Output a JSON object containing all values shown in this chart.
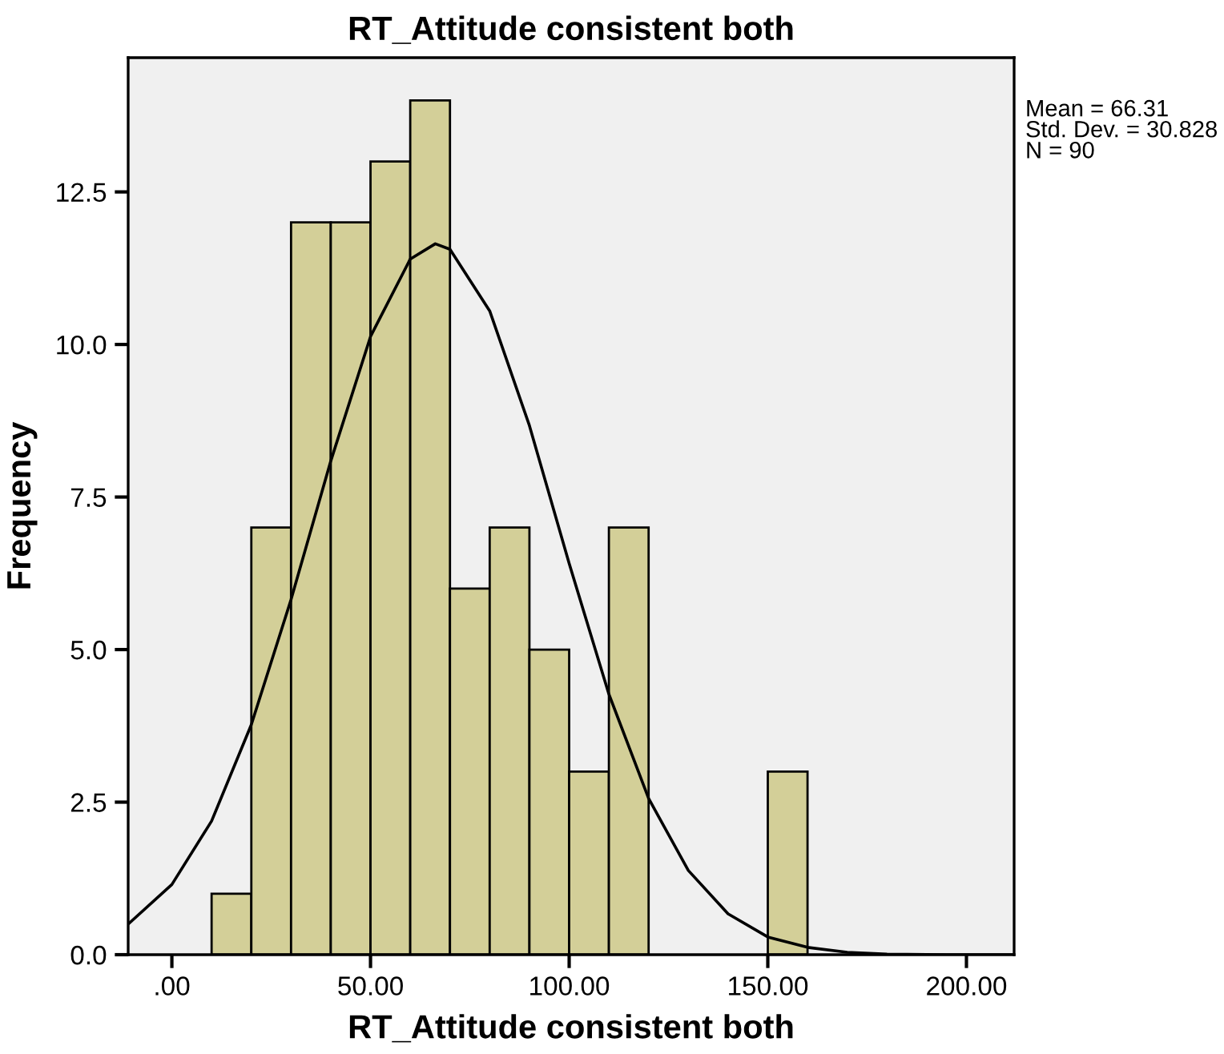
{
  "chart_data": {
    "type": "histogram",
    "title": "RT_Attitude consistent both",
    "xlabel": "RT_Attitude consistent both",
    "ylabel": "Frequency",
    "bins": [
      10,
      20,
      30,
      40,
      50,
      60,
      70,
      80,
      90,
      100,
      110,
      120,
      130,
      140,
      150,
      160
    ],
    "values": [
      1,
      7,
      12,
      12,
      13,
      14,
      6,
      7,
      5,
      3,
      7,
      0,
      0,
      0,
      3
    ],
    "color": "#d3cf98",
    "series": [
      {
        "type": "line",
        "color": "#000000",
        "x": [
          -11,
          0,
          10,
          20,
          30,
          40,
          50,
          60,
          66.31,
          70,
          80,
          90,
          100,
          110,
          120,
          130,
          140,
          150,
          160,
          170,
          180,
          195,
          212
        ],
        "values": [
          0.5,
          1.15,
          2.19,
          3.77,
          5.82,
          8.09,
          10.13,
          11.4,
          11.65,
          11.56,
          10.55,
          8.67,
          6.41,
          4.27,
          2.56,
          1.38,
          0.67,
          0.29,
          0.12,
          0.04,
          0.01,
          0.0,
          0.0
        ]
      }
    ],
    "xlim": [
      -11,
      212
    ],
    "ylim": [
      0,
      14.7
    ],
    "xticks": [
      {
        "value": 0,
        "label": ".00"
      },
      {
        "value": 50,
        "label": "50.00"
      },
      {
        "value": 100,
        "label": "100.00"
      },
      {
        "value": 150,
        "label": "150.00"
      },
      {
        "value": 200,
        "label": "200.00"
      }
    ],
    "yticks": [
      {
        "value": 0,
        "label": "0.0"
      },
      {
        "value": 2.5,
        "label": "2.5"
      },
      {
        "value": 5,
        "label": "5.0"
      },
      {
        "value": 7.5,
        "label": "7.5"
      },
      {
        "value": 10,
        "label": "10.0"
      },
      {
        "value": 12.5,
        "label": "12.5"
      }
    ],
    "annotations": [
      "Mean = 66.31\nStd. Dev. = 30.828\nN = 90"
    ]
  }
}
